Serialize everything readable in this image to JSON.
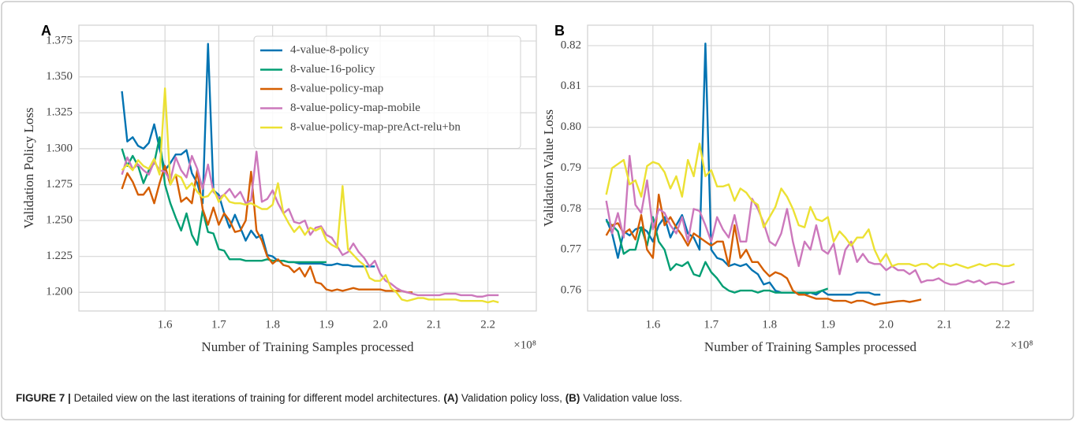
{
  "chart_data": [
    {
      "type": "line",
      "panel_label": "A",
      "y_label": "Validation Policy Loss",
      "x_label": "Number of Training Samples processed",
      "x_multiplier": "×10⁸",
      "xlim": [
        1.44,
        2.29
      ],
      "ylim": [
        1.187,
        1.386
      ],
      "xticks": [
        1.6,
        1.7,
        1.8,
        1.9,
        {
          "value": 2,
          "label": "2.0"
        },
        2.1,
        2.2
      ],
      "yticks": [
        {
          "value": 1.2,
          "label": "1.200"
        },
        1.225,
        {
          "value": 1.25,
          "label": "1.250"
        },
        1.275,
        {
          "value": 1.3,
          "label": "1.300"
        },
        1.325,
        {
          "value": 1.35,
          "label": "1.350"
        },
        1.375
      ],
      "grid": true,
      "legend": "upper right",
      "x": [
        1.52,
        1.53,
        1.54,
        1.55,
        1.56,
        1.57,
        1.58,
        1.59,
        1.6,
        1.61,
        1.62,
        1.63,
        1.64,
        1.65,
        1.66,
        1.67,
        1.68,
        1.69,
        1.7,
        1.71,
        1.72,
        1.73,
        1.74,
        1.75,
        1.76,
        1.77,
        1.78,
        1.79,
        1.8,
        1.81,
        1.82,
        1.83,
        1.84,
        1.85,
        1.86,
        1.87,
        1.88,
        1.89,
        1.9,
        1.91,
        1.92,
        1.93,
        1.94,
        1.95,
        1.96,
        1.97,
        1.98,
        1.99,
        2.0,
        2.01,
        2.02,
        2.03,
        2.04,
        2.05,
        2.06,
        2.07,
        2.08,
        2.09,
        2.1,
        2.11,
        2.12,
        2.13,
        2.14,
        2.15,
        2.16,
        2.17,
        2.18,
        2.19,
        2.2,
        2.21,
        2.22
      ],
      "series": [
        {
          "name": "4-value-8-policy",
          "color": "#0173b2",
          "values": [
            1.34,
            1.305,
            1.308,
            1.302,
            1.3,
            1.304,
            1.317,
            1.3,
            1.285,
            1.29,
            1.296,
            1.296,
            1.299,
            1.283,
            1.276,
            1.262,
            1.373,
            1.271,
            1.268,
            1.255,
            1.245,
            1.254,
            1.245,
            1.236,
            1.243,
            1.238,
            1.24,
            1.226,
            1.225,
            1.222,
            1.222,
            1.221,
            1.221,
            1.22,
            1.22,
            1.22,
            1.22,
            1.22,
            1.219,
            1.219,
            1.22,
            1.219,
            1.219,
            1.218,
            1.218,
            1.218,
            1.218,
            1.218,
            null,
            null,
            null,
            null,
            null,
            null,
            null,
            null,
            null,
            null,
            null,
            null,
            null,
            null,
            null,
            null,
            null,
            null,
            null,
            null,
            null,
            null,
            null
          ]
        },
        {
          "name": "8-value-16-policy",
          "color": "#029e73",
          "values": [
            1.3,
            1.288,
            1.295,
            1.288,
            1.276,
            1.285,
            1.29,
            1.308,
            1.275,
            1.262,
            1.252,
            1.243,
            1.255,
            1.24,
            1.233,
            1.257,
            1.242,
            1.241,
            1.23,
            1.229,
            1.223,
            1.223,
            1.223,
            1.222,
            1.222,
            1.222,
            1.222,
            1.223,
            1.222,
            1.222,
            1.222,
            1.221,
            1.221,
            1.221,
            1.221,
            1.221,
            1.221,
            1.221,
            1.221,
            null,
            null,
            null,
            null,
            null,
            null,
            null,
            null,
            null,
            null,
            null,
            null,
            null,
            null,
            null,
            null,
            null,
            null,
            null,
            null,
            null,
            null,
            null,
            null,
            null,
            null,
            null,
            null,
            null,
            null,
            null,
            null
          ]
        },
        {
          "name": "8-value-policy-map",
          "color": "#d55e00",
          "values": [
            1.272,
            1.283,
            1.277,
            1.268,
            1.268,
            1.273,
            1.262,
            1.276,
            1.288,
            1.275,
            1.282,
            1.263,
            1.266,
            1.262,
            1.285,
            1.258,
            1.247,
            1.259,
            1.247,
            1.255,
            1.25,
            1.242,
            1.243,
            1.25,
            1.284,
            1.243,
            1.236,
            1.225,
            1.22,
            1.223,
            1.219,
            1.218,
            1.214,
            1.217,
            1.211,
            1.218,
            1.207,
            1.206,
            1.202,
            1.201,
            1.202,
            1.201,
            1.202,
            1.203,
            1.202,
            1.202,
            1.202,
            1.202,
            1.202,
            1.201,
            1.201,
            1.201,
            1.201,
            1.2,
            1.2,
            null,
            null,
            null,
            null,
            null,
            null,
            null,
            null,
            null,
            null,
            null,
            null,
            null,
            null,
            null,
            null
          ]
        },
        {
          "name": "8-value-policy-map-mobile",
          "color": "#cc78bc",
          "values": [
            1.282,
            1.294,
            1.286,
            1.289,
            1.285,
            1.282,
            1.291,
            1.285,
            1.284,
            1.278,
            1.294,
            1.285,
            1.28,
            1.295,
            1.286,
            1.272,
            1.289,
            1.27,
            1.266,
            1.268,
            1.272,
            1.266,
            1.27,
            1.262,
            1.264,
            1.298,
            1.263,
            1.265,
            1.271,
            1.262,
            1.255,
            1.258,
            1.249,
            1.248,
            1.25,
            1.24,
            1.245,
            1.246,
            1.24,
            1.238,
            1.232,
            1.226,
            1.228,
            1.234,
            1.228,
            1.224,
            1.218,
            1.222,
            1.213,
            1.208,
            1.206,
            1.203,
            1.201,
            1.2,
            1.199,
            1.198,
            1.198,
            1.198,
            1.198,
            1.198,
            1.199,
            1.199,
            1.199,
            1.198,
            1.198,
            1.198,
            1.197,
            1.197,
            1.198,
            1.198,
            1.198
          ]
        },
        {
          "name": "8-value-policy-map-preAct-relu+bn",
          "color": "#ece133",
          "values": [
            1.285,
            1.289,
            1.285,
            1.292,
            1.288,
            1.286,
            1.293,
            1.282,
            1.342,
            1.275,
            1.282,
            1.28,
            1.272,
            1.276,
            1.27,
            1.266,
            1.267,
            1.272,
            1.263,
            1.268,
            1.263,
            1.262,
            1.262,
            1.261,
            1.262,
            1.26,
            1.258,
            1.258,
            1.261,
            1.276,
            1.255,
            1.248,
            1.242,
            1.246,
            1.24,
            1.245,
            1.243,
            1.245,
            1.236,
            1.233,
            1.231,
            1.274,
            1.23,
            1.226,
            1.222,
            1.219,
            1.21,
            1.208,
            1.208,
            1.212,
            1.203,
            1.2,
            1.195,
            1.194,
            1.195,
            1.196,
            1.196,
            1.195,
            1.195,
            1.195,
            1.195,
            1.195,
            1.195,
            1.194,
            1.194,
            1.194,
            1.194,
            1.194,
            1.193,
            1.194,
            1.193
          ]
        }
      ]
    },
    {
      "type": "line",
      "panel_label": "B",
      "y_label": "Validation Value Loss",
      "x_label": "Number of Training Samples processed",
      "x_multiplier": "×10⁸",
      "xlim": [
        1.488,
        2.252
      ],
      "ylim": [
        0.755,
        0.825
      ],
      "xticks": [
        1.6,
        1.7,
        1.8,
        1.9,
        {
          "value": 2,
          "label": "2.0"
        },
        2.1,
        2.2
      ],
      "yticks": [
        0.76,
        0.77,
        0.78,
        0.79,
        {
          "value": 0.8,
          "label": "0.80"
        },
        0.81,
        0.82
      ],
      "grid": true,
      "x": [
        1.52,
        1.53,
        1.54,
        1.55,
        1.56,
        1.57,
        1.58,
        1.59,
        1.6,
        1.61,
        1.62,
        1.63,
        1.64,
        1.65,
        1.66,
        1.67,
        1.68,
        1.69,
        1.7,
        1.71,
        1.72,
        1.73,
        1.74,
        1.75,
        1.76,
        1.77,
        1.78,
        1.79,
        1.8,
        1.81,
        1.82,
        1.83,
        1.84,
        1.85,
        1.86,
        1.87,
        1.88,
        1.89,
        1.9,
        1.91,
        1.92,
        1.93,
        1.94,
        1.95,
        1.96,
        1.97,
        1.98,
        1.99,
        2.0,
        2.01,
        2.02,
        2.03,
        2.04,
        2.05,
        2.06,
        2.07,
        2.08,
        2.09,
        2.1,
        2.11,
        2.12,
        2.13,
        2.14,
        2.15,
        2.16,
        2.17,
        2.18,
        2.19,
        2.2,
        2.21,
        2.22
      ],
      "series": [
        {
          "color": "#0173b2",
          "values": [
            0.7775,
            0.774,
            0.768,
            0.7745,
            0.7735,
            0.775,
            0.7755,
            0.7745,
            0.772,
            0.776,
            0.778,
            0.773,
            0.776,
            0.7785,
            0.774,
            0.773,
            0.77,
            0.8205,
            0.77,
            0.768,
            0.7675,
            0.766,
            0.7665,
            0.766,
            0.7665,
            0.765,
            0.764,
            0.7615,
            0.762,
            0.76,
            0.7595,
            0.7595,
            0.7595,
            0.7595,
            0.759,
            0.7595,
            0.759,
            0.76,
            0.759,
            0.759,
            0.759,
            0.759,
            0.759,
            0.7595,
            0.7595,
            0.7595,
            0.759,
            0.759,
            null,
            null,
            null,
            null,
            null,
            null,
            null,
            null,
            null,
            null,
            null,
            null,
            null,
            null,
            null,
            null,
            null,
            null,
            null,
            null,
            null,
            null,
            null
          ]
        },
        {
          "color": "#029e73",
          "values": [
            0.777,
            0.776,
            0.7745,
            0.769,
            0.77,
            0.77,
            0.7755,
            0.771,
            0.778,
            0.772,
            0.77,
            0.765,
            0.7665,
            0.766,
            0.767,
            0.764,
            0.7635,
            0.767,
            0.7645,
            0.763,
            0.761,
            0.76,
            0.7595,
            0.76,
            0.76,
            0.76,
            0.7595,
            0.76,
            0.76,
            0.7595,
            0.7595,
            0.7595,
            0.7595,
            0.7595,
            0.7595,
            0.7595,
            0.7595,
            0.76,
            0.7605,
            null,
            null,
            null,
            null,
            null,
            null,
            null,
            null,
            null,
            null,
            null,
            null,
            null,
            null,
            null,
            null,
            null,
            null,
            null,
            null,
            null,
            null,
            null,
            null,
            null,
            null,
            null,
            null,
            null,
            null,
            null,
            null
          ]
        },
        {
          "color": "#d55e00",
          "values": [
            0.7735,
            0.776,
            0.7765,
            0.774,
            0.775,
            0.7725,
            0.7785,
            0.77,
            0.768,
            0.7835,
            0.776,
            0.778,
            0.7755,
            0.7735,
            0.771,
            0.774,
            0.773,
            0.772,
            0.771,
            0.772,
            0.772,
            0.766,
            0.776,
            0.768,
            0.77,
            0.767,
            0.767,
            0.765,
            0.7635,
            0.7645,
            0.764,
            0.763,
            0.76,
            0.759,
            0.759,
            0.7585,
            0.758,
            0.758,
            0.758,
            0.7575,
            0.7575,
            0.7575,
            0.757,
            0.7575,
            0.7575,
            0.757,
            0.7565,
            0.7568,
            0.757,
            0.7572,
            0.7574,
            0.7575,
            0.7572,
            0.7575,
            0.7578,
            null,
            null,
            null,
            null,
            null,
            null,
            null,
            null,
            null,
            null,
            null,
            null,
            null,
            null,
            null,
            null
          ]
        },
        {
          "color": "#cc78bc",
          "values": [
            0.782,
            0.774,
            0.779,
            0.773,
            0.793,
            0.781,
            0.779,
            0.787,
            0.775,
            0.78,
            0.779,
            0.776,
            0.774,
            0.778,
            0.772,
            0.78,
            0.7795,
            0.776,
            0.772,
            0.778,
            0.775,
            0.773,
            0.7785,
            0.772,
            0.772,
            0.7825,
            0.78,
            0.7765,
            0.772,
            0.771,
            0.774,
            0.78,
            0.772,
            0.766,
            0.772,
            0.77,
            0.776,
            0.77,
            0.769,
            0.7715,
            0.764,
            0.77,
            0.772,
            0.767,
            0.769,
            0.767,
            0.7665,
            0.7665,
            0.765,
            0.766,
            0.765,
            0.765,
            0.764,
            0.765,
            0.762,
            0.7625,
            0.7625,
            0.763,
            0.762,
            0.7615,
            0.7615,
            0.762,
            0.7625,
            0.762,
            0.7625,
            0.7615,
            0.762,
            0.762,
            0.7615,
            0.7618,
            0.7622
          ]
        },
        {
          "color": "#ece133",
          "values": [
            0.7835,
            0.79,
            0.791,
            0.792,
            0.786,
            0.787,
            0.783,
            0.7905,
            0.7915,
            0.791,
            0.789,
            0.785,
            0.788,
            0.783,
            0.792,
            0.788,
            0.796,
            0.788,
            0.7895,
            0.7855,
            0.7855,
            0.786,
            0.782,
            0.785,
            0.784,
            0.782,
            0.781,
            0.7755,
            0.778,
            0.7805,
            0.785,
            0.783,
            0.78,
            0.776,
            0.7755,
            0.7805,
            0.7775,
            0.777,
            0.778,
            0.772,
            0.7745,
            0.773,
            0.771,
            0.773,
            0.773,
            0.775,
            0.77,
            0.767,
            0.769,
            0.766,
            0.7665,
            0.7665,
            0.7665,
            0.766,
            0.7665,
            0.7665,
            0.7655,
            0.7665,
            0.7665,
            0.766,
            0.7665,
            0.766,
            0.7655,
            0.766,
            0.7665,
            0.766,
            0.7665,
            0.7665,
            0.766,
            0.766,
            0.7665
          ]
        }
      ]
    }
  ],
  "caption": {
    "figure": "FIGURE 7 |",
    "parts": [
      "Detailed view on the last iterations of training for different model architectures.",
      "(A)",
      "Validation policy loss,",
      "(B)",
      "Validation value loss."
    ]
  }
}
